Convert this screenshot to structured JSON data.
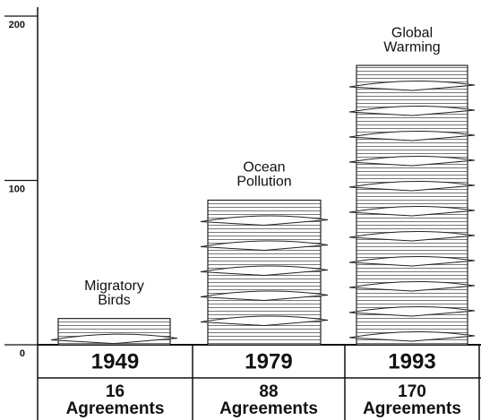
{
  "chart_data": {
    "type": "bar",
    "categories": [
      "1949",
      "1979",
      "1993"
    ],
    "values": [
      16,
      88,
      170
    ],
    "bar_labels": [
      [
        "Migratory",
        "Birds"
      ],
      [
        "Ocean",
        "Pollution"
      ],
      [
        "Global",
        "Warming"
      ]
    ],
    "unit_label": "Agreements",
    "color": "#ffffff",
    "ylim": [
      0,
      200
    ],
    "yticks": [
      0,
      100,
      200
    ]
  }
}
